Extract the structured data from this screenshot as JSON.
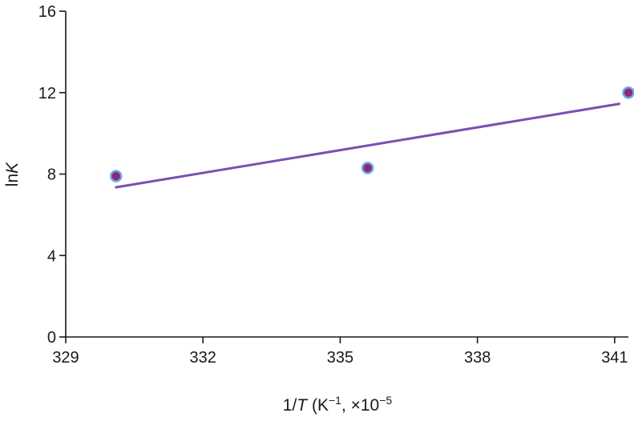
{
  "chart_data": {
    "type": "scatter",
    "title": "",
    "xlabel": {
      "prefix": "1/",
      "var": "T",
      "suffix": " (K",
      "sup1": "−1",
      "mid": ", ×10",
      "sup2": "−5"
    },
    "ylabel": {
      "prefix": "ln",
      "var": "K"
    },
    "xlim": [
      329,
      341.3
    ],
    "ylim": [
      0,
      16
    ],
    "x_ticks": [
      329,
      332,
      335,
      338,
      341
    ],
    "x_tick_labels": [
      "329",
      "332",
      "335",
      "338",
      "341"
    ],
    "y_ticks": [
      0,
      4,
      8,
      12,
      16
    ],
    "y_tick_labels": [
      "0",
      "4",
      "8",
      "12",
      "16"
    ],
    "grid": false,
    "series": [
      {
        "kind": "points",
        "x": [
          330.1,
          335.6,
          341.3
        ],
        "y": [
          7.9,
          8.3,
          12.0
        ]
      },
      {
        "kind": "fit_line",
        "x": [
          330.1,
          341.1
        ],
        "y": [
          7.35,
          11.45
        ]
      }
    ],
    "colors": {
      "point_fill": "#8b2a7a",
      "point_ring": "#6fa8e0",
      "line": "#7b4fb0",
      "axis": "#1a1a1a"
    }
  }
}
